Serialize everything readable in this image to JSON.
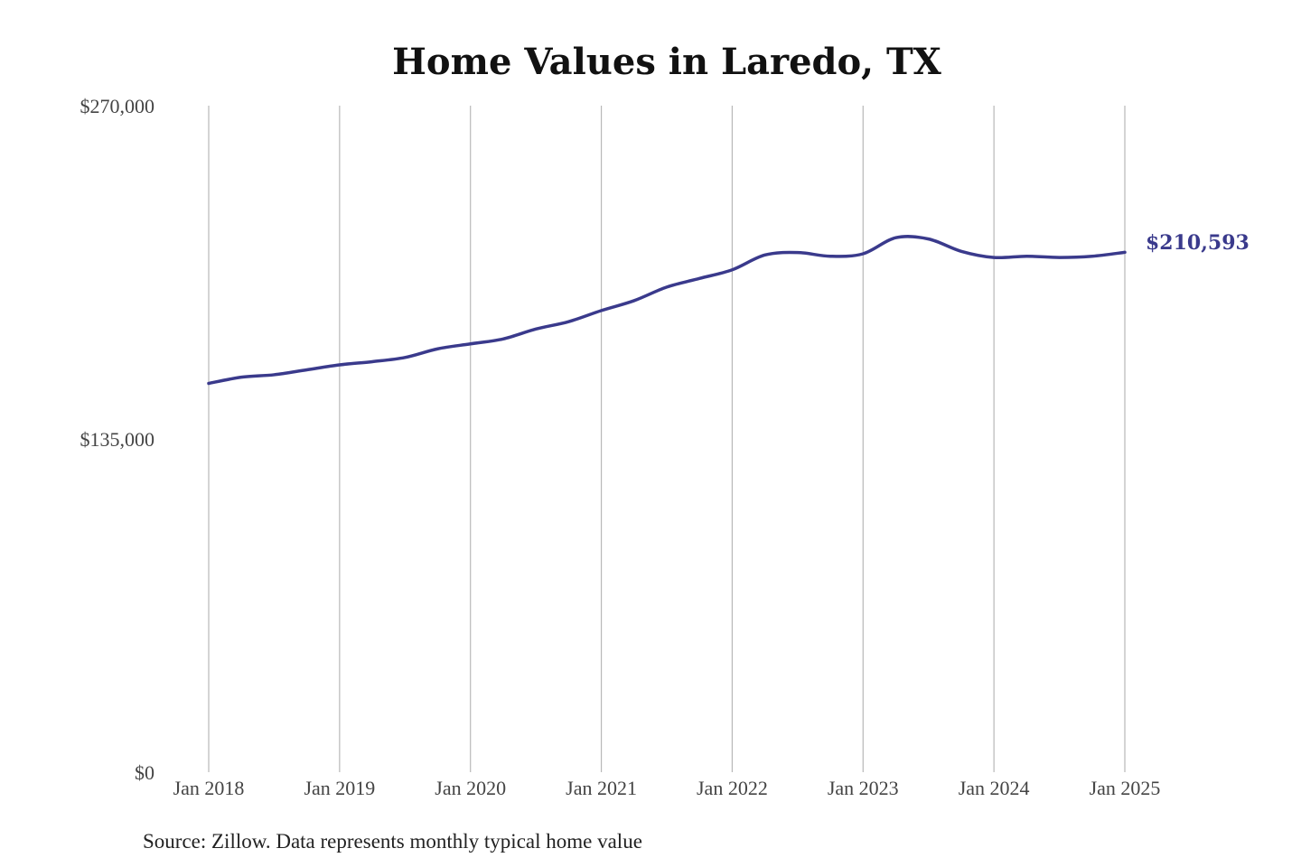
{
  "chart_data": {
    "type": "line",
    "title": "Home Values in Laredo, TX",
    "xlabel": "",
    "ylabel": "",
    "x_ticks": [
      "Jan 2018",
      "Jan 2019",
      "Jan 2020",
      "Jan 2021",
      "Jan 2022",
      "Jan 2023",
      "Jan 2024",
      "Jan 2025"
    ],
    "y_ticks": [
      "$0",
      "$135,000",
      "$270,000"
    ],
    "y_tick_values": [
      0,
      135000,
      270000
    ],
    "ylim": [
      0,
      270000
    ],
    "xlim": [
      "2018-01",
      "2025-01"
    ],
    "grid": "vertical",
    "end_label": "$210,593",
    "colors": {
      "series": "#3a3a8c",
      "grid": "#b8b8b8"
    },
    "series": [
      {
        "x": [
          "2018-01",
          "2018-04",
          "2018-07",
          "2018-10",
          "2019-01",
          "2019-04",
          "2019-07",
          "2019-10",
          "2020-01",
          "2020-04",
          "2020-07",
          "2020-10",
          "2021-01",
          "2021-04",
          "2021-07",
          "2021-10",
          "2022-01",
          "2022-04",
          "2022-07",
          "2022-10",
          "2023-01",
          "2023-04",
          "2023-07",
          "2023-10",
          "2024-01",
          "2024-04",
          "2024-07",
          "2024-10",
          "2025-01"
        ],
        "values": [
          157500,
          160000,
          161000,
          163000,
          165000,
          166300,
          168000,
          171500,
          173500,
          175500,
          179500,
          182500,
          187000,
          191000,
          196500,
          200000,
          203500,
          209500,
          210500,
          209000,
          210000,
          216500,
          216000,
          211000,
          208500,
          209000,
          208500,
          209000,
          210593
        ]
      }
    ]
  },
  "source": "Source: Zillow. Data represents monthly typical home value"
}
